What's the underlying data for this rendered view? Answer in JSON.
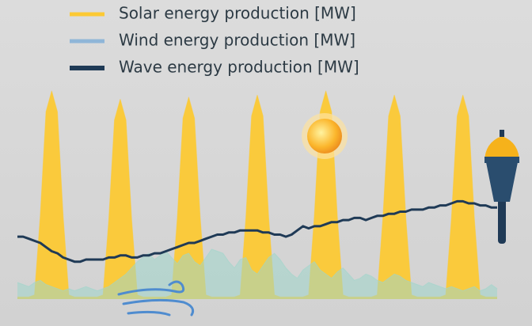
{
  "chart_data": {
    "type": "area",
    "ylim": [
      0,
      100
    ],
    "series": [
      {
        "name": "Solar energy production [MW]",
        "color": "#fcc934",
        "values": [
          1,
          1,
          1,
          2,
          40,
          90,
          100,
          90,
          40,
          2,
          1,
          1,
          1,
          1,
          1,
          2,
          38,
          86,
          96,
          86,
          38,
          2,
          1,
          1,
          1,
          1,
          1,
          2,
          39,
          87,
          97,
          87,
          39,
          2,
          1,
          1,
          1,
          1,
          1,
          2,
          39,
          88,
          98,
          88,
          39,
          2,
          1,
          1,
          1,
          1,
          1,
          2,
          40,
          90,
          100,
          90,
          40,
          2,
          1,
          1,
          1,
          1,
          1,
          2,
          39,
          88,
          98,
          88,
          39,
          2,
          1,
          1,
          1,
          1,
          1,
          2,
          39,
          88,
          98,
          88,
          39,
          2,
          1,
          1,
          1
        ]
      },
      {
        "name": "Wind energy production [MW]",
        "color": "#8fb6d8",
        "values": [
          8,
          7,
          6,
          8,
          9,
          7,
          6,
          5,
          4,
          5,
          4,
          5,
          6,
          5,
          4,
          5,
          6,
          8,
          10,
          12,
          15,
          18,
          20,
          22,
          19,
          21,
          23,
          20,
          17,
          21,
          22,
          18,
          16,
          20,
          24,
          23,
          22,
          18,
          15,
          19,
          20,
          14,
          12,
          16,
          20,
          22,
          19,
          15,
          12,
          10,
          14,
          16,
          18,
          14,
          12,
          10,
          13,
          15,
          12,
          9,
          10,
          12,
          11,
          9,
          8,
          10,
          12,
          11,
          9,
          8,
          7,
          6,
          8,
          7,
          6,
          5,
          6,
          5,
          4,
          5,
          6,
          4,
          5,
          7,
          5
        ]
      },
      {
        "name": "Wave energy production [MW]",
        "color": "#1f3a56",
        "values": [
          30,
          30,
          29,
          28,
          27,
          25,
          23,
          22,
          20,
          19,
          18,
          18,
          19,
          19,
          19,
          19,
          20,
          20,
          21,
          21,
          20,
          20,
          21,
          21,
          22,
          22,
          23,
          24,
          25,
          26,
          27,
          27,
          28,
          29,
          30,
          31,
          31,
          32,
          32,
          33,
          33,
          33,
          33,
          32,
          32,
          31,
          31,
          30,
          31,
          33,
          35,
          34,
          35,
          35,
          36,
          37,
          37,
          38,
          38,
          39,
          39,
          38,
          39,
          40,
          40,
          41,
          41,
          42,
          42,
          43,
          43,
          43,
          44,
          44,
          45,
          45,
          46,
          47,
          47,
          46,
          46,
          45,
          45,
          44,
          44
        ]
      }
    ]
  }
}
